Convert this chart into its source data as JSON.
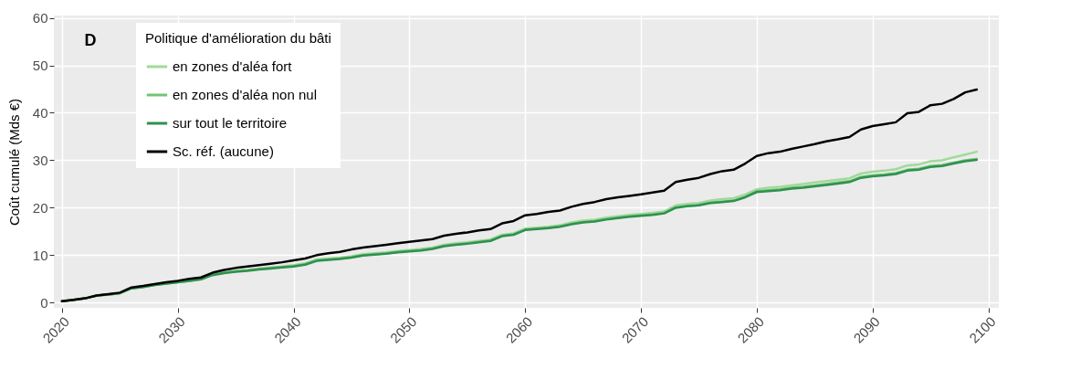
{
  "chart_data": {
    "type": "line",
    "ylabel": "Coût cumulé (Mds €)",
    "legend_title": "Politique d'amélioration du bâti",
    "annotations": [
      "D"
    ],
    "x": [
      2020,
      2021,
      2022,
      2023,
      2024,
      2025,
      2026,
      2027,
      2028,
      2029,
      2030,
      2031,
      2032,
      2033,
      2034,
      2035,
      2036,
      2037,
      2038,
      2039,
      2040,
      2041,
      2042,
      2043,
      2044,
      2045,
      2046,
      2047,
      2048,
      2049,
      2050,
      2051,
      2052,
      2053,
      2054,
      2055,
      2056,
      2057,
      2058,
      2059,
      2060,
      2061,
      2062,
      2063,
      2064,
      2065,
      2066,
      2067,
      2068,
      2069,
      2070,
      2071,
      2072,
      2073,
      2074,
      2075,
      2076,
      2077,
      2078,
      2079,
      2080,
      2081,
      2082,
      2083,
      2084,
      2085,
      2086,
      2087,
      2088,
      2089,
      2090,
      2091,
      2092,
      2093,
      2094,
      2095,
      2096,
      2097,
      2098,
      2099
    ],
    "series": [
      {
        "name": "en zones d'aléa fort",
        "color": "#a1d99b",
        "values": [
          0.3,
          0.6,
          0.9,
          1.5,
          1.7,
          2.0,
          3.1,
          3.4,
          3.8,
          4.1,
          4.4,
          4.7,
          5.0,
          6.0,
          6.4,
          6.7,
          6.9,
          7.2,
          7.4,
          7.6,
          7.9,
          8.3,
          9.1,
          9.3,
          9.5,
          9.8,
          10.2,
          10.4,
          10.6,
          10.9,
          11.1,
          11.3,
          11.6,
          12.2,
          12.5,
          12.7,
          13.0,
          13.3,
          14.3,
          14.6,
          15.6,
          15.8,
          16.0,
          16.3,
          16.9,
          17.3,
          17.5,
          17.9,
          18.2,
          18.5,
          18.7,
          18.9,
          19.2,
          20.5,
          20.8,
          21.0,
          21.5,
          21.8,
          22.0,
          22.8,
          23.9,
          24.2,
          24.4,
          24.7,
          25.0,
          25.3,
          25.6,
          25.9,
          26.2,
          27.2,
          27.6,
          27.8,
          28.1,
          28.9,
          29.1,
          29.8,
          30.0,
          30.6,
          31.2,
          31.8
        ]
      },
      {
        "name": "en zones d'aléa non nul",
        "color": "#74c476",
        "values": [
          0.3,
          0.6,
          0.9,
          1.5,
          1.7,
          2.0,
          3.0,
          3.3,
          3.7,
          4.0,
          4.3,
          4.6,
          4.9,
          5.9,
          6.3,
          6.6,
          6.8,
          7.1,
          7.3,
          7.5,
          7.7,
          8.1,
          8.9,
          9.1,
          9.3,
          9.6,
          10.0,
          10.2,
          10.4,
          10.7,
          10.9,
          11.1,
          11.4,
          12.0,
          12.3,
          12.5,
          12.8,
          13.1,
          14.1,
          14.4,
          15.4,
          15.6,
          15.8,
          16.1,
          16.6,
          17.0,
          17.2,
          17.6,
          17.9,
          18.2,
          18.4,
          18.6,
          18.9,
          20.1,
          20.4,
          20.6,
          21.1,
          21.3,
          21.5,
          22.3,
          23.5,
          23.7,
          23.9,
          24.2,
          24.4,
          24.7,
          25.0,
          25.3,
          25.6,
          26.5,
          26.8,
          27.0,
          27.3,
          28.0,
          28.2,
          28.8,
          29.0,
          29.5,
          30.0,
          30.3
        ]
      },
      {
        "name": "sur tout le territoire",
        "color": "#2e9150",
        "values": [
          0.3,
          0.6,
          0.9,
          1.5,
          1.7,
          2.0,
          3.0,
          3.3,
          3.7,
          4.0,
          4.3,
          4.6,
          4.9,
          5.8,
          6.2,
          6.5,
          6.7,
          7.0,
          7.2,
          7.4,
          7.6,
          8.0,
          8.8,
          9.0,
          9.2,
          9.5,
          9.9,
          10.1,
          10.3,
          10.6,
          10.8,
          11.0,
          11.3,
          11.9,
          12.2,
          12.4,
          12.7,
          13.0,
          14.0,
          14.3,
          15.3,
          15.5,
          15.7,
          16.0,
          16.5,
          16.9,
          17.1,
          17.5,
          17.8,
          18.1,
          18.3,
          18.5,
          18.8,
          20.0,
          20.3,
          20.5,
          21.0,
          21.2,
          21.4,
          22.2,
          23.3,
          23.5,
          23.7,
          24.0,
          24.2,
          24.5,
          24.8,
          25.1,
          25.4,
          26.3,
          26.6,
          26.8,
          27.1,
          27.8,
          28.0,
          28.6,
          28.8,
          29.3,
          29.8,
          30.1
        ]
      },
      {
        "name": "Sc. réf. (aucune)",
        "color": "#000000",
        "values": [
          0.3,
          0.6,
          0.9,
          1.5,
          1.8,
          2.1,
          3.2,
          3.5,
          3.9,
          4.3,
          4.6,
          5.0,
          5.3,
          6.3,
          6.9,
          7.3,
          7.6,
          7.9,
          8.2,
          8.5,
          8.9,
          9.3,
          10.0,
          10.4,
          10.7,
          11.2,
          11.6,
          11.9,
          12.2,
          12.5,
          12.8,
          13.1,
          13.4,
          14.1,
          14.5,
          14.8,
          15.2,
          15.5,
          16.7,
          17.2,
          18.4,
          18.7,
          19.1,
          19.4,
          20.2,
          20.8,
          21.2,
          21.8,
          22.2,
          22.5,
          22.8,
          23.2,
          23.6,
          25.4,
          25.9,
          26.3,
          27.1,
          27.7,
          28.0,
          29.3,
          30.9,
          31.5,
          31.8,
          32.4,
          32.9,
          33.4,
          34.0,
          34.4,
          34.9,
          36.5,
          37.2,
          37.6,
          38.0,
          39.9,
          40.2,
          41.6,
          41.9,
          42.9,
          44.3,
          44.9
        ]
      }
    ],
    "xlim": [
      2019.3,
      2100.9
    ],
    "ylim": [
      -1.1,
      60.5
    ],
    "xticks": [
      2020,
      2030,
      2040,
      2050,
      2060,
      2070,
      2080,
      2090,
      2100
    ],
    "yticks": [
      0,
      10,
      20,
      30,
      40,
      50,
      60
    ],
    "grid": true,
    "legend": "top left",
    "marker": "none",
    "line_style": "solid"
  }
}
